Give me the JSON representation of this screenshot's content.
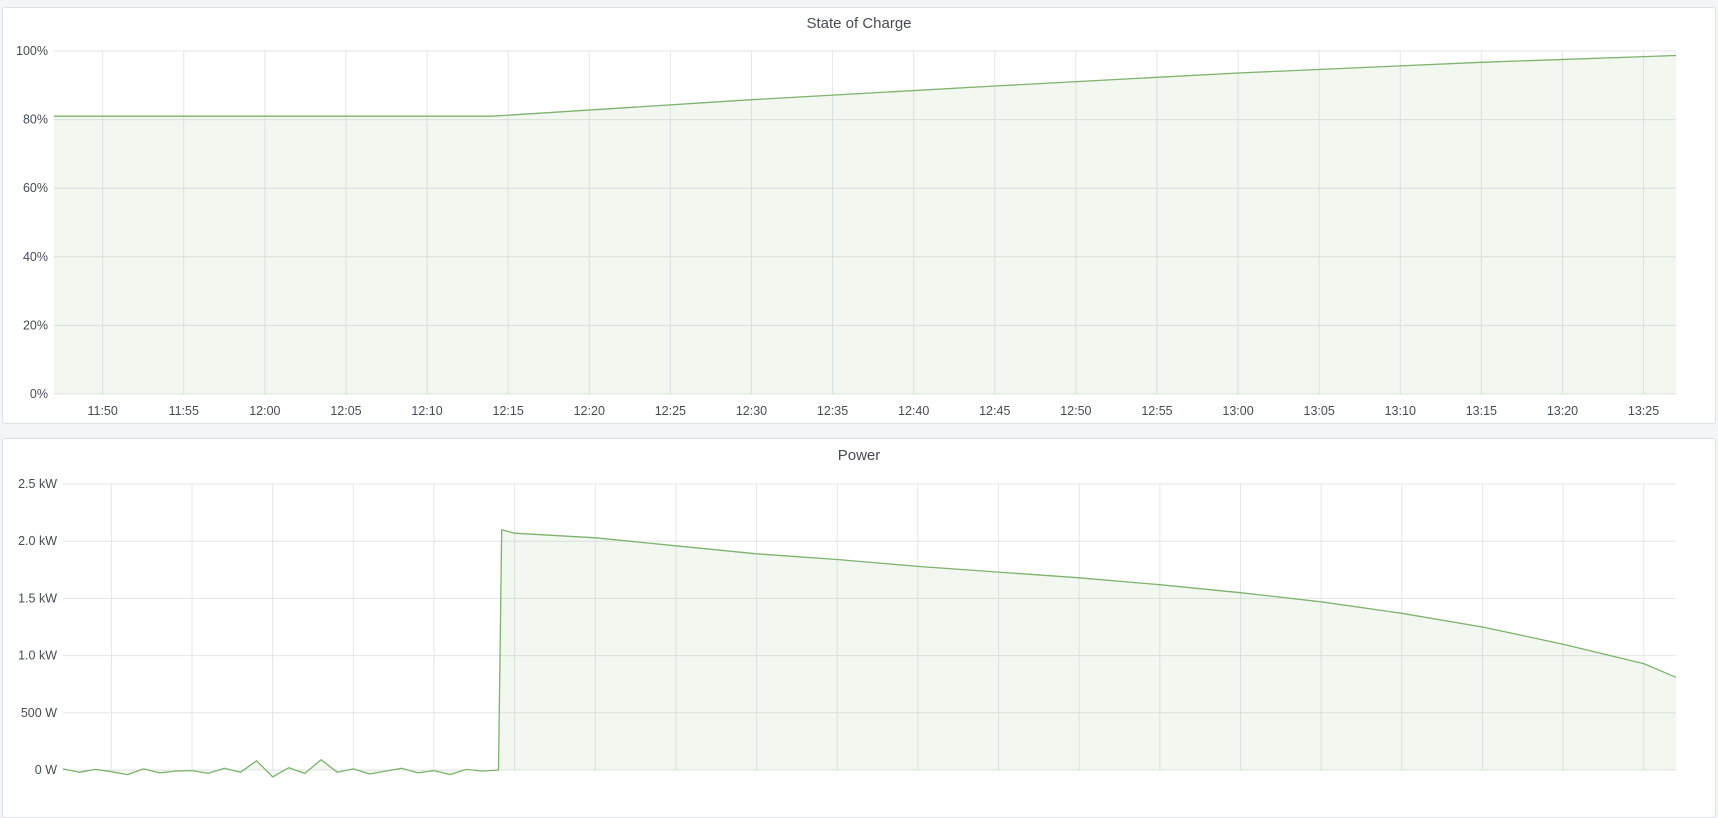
{
  "chart_data": [
    {
      "type": "area",
      "title": "State of Charge",
      "xlim": [
        "11:47",
        "13:27"
      ],
      "ylim": [
        0,
        100
      ],
      "x_ticks": [
        "11:50",
        "11:55",
        "12:00",
        "12:05",
        "12:10",
        "12:15",
        "12:20",
        "12:25",
        "12:30",
        "12:35",
        "12:40",
        "12:45",
        "12:50",
        "12:55",
        "13:00",
        "13:05",
        "13:10",
        "13:15",
        "13:20",
        "13:25"
      ],
      "y_ticks": [
        {
          "value": 0,
          "label": "0%"
        },
        {
          "value": 20,
          "label": "20%"
        },
        {
          "value": 40,
          "label": "40%"
        },
        {
          "value": 60,
          "label": "60%"
        },
        {
          "value": 80,
          "label": "80%"
        },
        {
          "value": 100,
          "label": "100%"
        }
      ],
      "grid": true,
      "color": "#7eb26d",
      "series": [
        {
          "x": [
            "11:47",
            "12:14",
            "12:30",
            "12:45",
            "13:00",
            "13:15",
            "13:27"
          ],
          "y": [
            81,
            81,
            85.8,
            89.8,
            93.6,
            96.7,
            98.7
          ]
        }
      ]
    },
    {
      "type": "area",
      "title": "Power",
      "xlim": [
        "11:47",
        "13:27"
      ],
      "ylim": [
        0,
        2500
      ],
      "x_ticks": [
        "11:50",
        "11:55",
        "12:00",
        "12:05",
        "12:10",
        "12:15",
        "12:20",
        "12:25",
        "12:30",
        "12:35",
        "12:40",
        "12:45",
        "12:50",
        "12:55",
        "13:00",
        "13:05",
        "13:10",
        "13:15",
        "13:20",
        "13:25"
      ],
      "y_ticks": [
        {
          "value": 0,
          "label": "0 W"
        },
        {
          "value": 500,
          "label": "500 W"
        },
        {
          "value": 1000,
          "label": "1.0 kW"
        },
        {
          "value": 1500,
          "label": "1.5 kW"
        },
        {
          "value": 2000,
          "label": "2.0 kW"
        },
        {
          "value": 2500,
          "label": "2.5 kW"
        }
      ],
      "grid": true,
      "color": "#7eb26d",
      "series": [
        {
          "x": [
            "11:47",
            "11:48",
            "11:49",
            "11:50",
            "11:51",
            "11:52",
            "11:53",
            "11:54",
            "11:55",
            "11:56",
            "11:57",
            "11:58",
            "11:59",
            "12:00",
            "12:01",
            "12:02",
            "12:03",
            "12:04",
            "12:05",
            "12:06",
            "12:07",
            "12:08",
            "12:09",
            "12:10",
            "12:11",
            "12:12",
            "12:13",
            "12:14",
            "12:14.2",
            "12:15",
            "12:20",
            "12:25",
            "12:30",
            "12:35",
            "12:40",
            "12:45",
            "12:50",
            "12:55",
            "13:00",
            "13:05",
            "13:10",
            "13:15",
            "13:20",
            "13:25",
            "13:27"
          ],
          "y": [
            10,
            -20,
            5,
            -15,
            -40,
            10,
            -25,
            -10,
            -5,
            -30,
            15,
            -20,
            80,
            -60,
            20,
            -30,
            90,
            -20,
            10,
            -35,
            -10,
            15,
            -25,
            -5,
            -40,
            5,
            -10,
            0,
            2100,
            2070,
            2030,
            1960,
            1890,
            1840,
            1780,
            1730,
            1680,
            1620,
            1550,
            1470,
            1370,
            1250,
            1100,
            930,
            810
          ]
        }
      ]
    }
  ]
}
